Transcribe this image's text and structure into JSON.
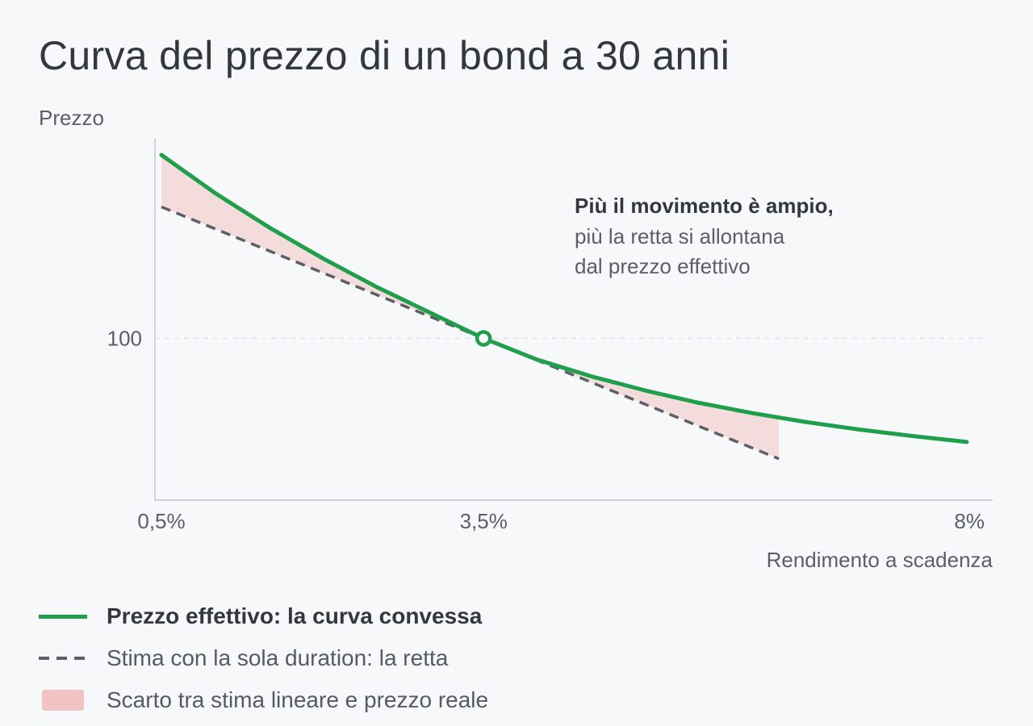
{
  "title": "Curva del prezzo di un bond a 30 anni",
  "chart_data": {
    "type": "line",
    "title": "Curva del prezzo di un bond a 30 anni",
    "ylabel": "Prezzo",
    "xlabel": "Rendimento a scadenza",
    "x_ticks": [
      "0,5%",
      "3,5%",
      "8%"
    ],
    "y_ticks": [
      "100"
    ],
    "xlim": [
      0.5,
      8.0
    ],
    "ylim": [
      53,
      158
    ],
    "reference_line_y": 100,
    "marked_point": {
      "x": 3.5,
      "y": 100
    },
    "annotation": {
      "bold": "Più il movimento è ampio,",
      "line1": "più la retta si allontana",
      "line2": "dal prezzo effettivo"
    },
    "series": [
      {
        "name": "Prezzo effettivo: la curva convessa",
        "style": "solid",
        "color": "#1f9e4b",
        "x": [
          0.5,
          1.0,
          1.5,
          2.0,
          2.5,
          3.0,
          3.5,
          4.0,
          4.5,
          5.0,
          5.5,
          6.0,
          6.5,
          7.0,
          7.5,
          8.0
        ],
        "y": [
          153.3,
          142.2,
          132.3,
          123.3,
          115.0,
          107.5,
          100.0,
          93.8,
          89.0,
          84.9,
          81.3,
          78.3,
          75.7,
          73.5,
          71.6,
          69.9
        ]
      },
      {
        "name": "Stima con la sola duration: la retta",
        "style": "dashed",
        "color": "#5a5f68",
        "x": [
          0.5,
          3.5,
          6.25
        ],
        "y": [
          138.2,
          100.0,
          65.0
        ]
      }
    ],
    "shaded_region": {
      "name": "Scarto tra stima lineare e prezzo reale",
      "color": "#f5dcdc",
      "x_range": [
        0.5,
        6.25
      ]
    },
    "legend_position": "bottom-left",
    "grid": false
  },
  "legend": [
    {
      "label": "Prezzo effettivo: la curva convessa",
      "kind": "solid",
      "color": "#1f9e4b"
    },
    {
      "label": "Stima con la sola duration: la retta",
      "kind": "dashed",
      "color": "#5a5f68"
    },
    {
      "label": "Scarto tra stima lineare e prezzo reale",
      "kind": "box",
      "color": "#f2c3c3"
    }
  ]
}
